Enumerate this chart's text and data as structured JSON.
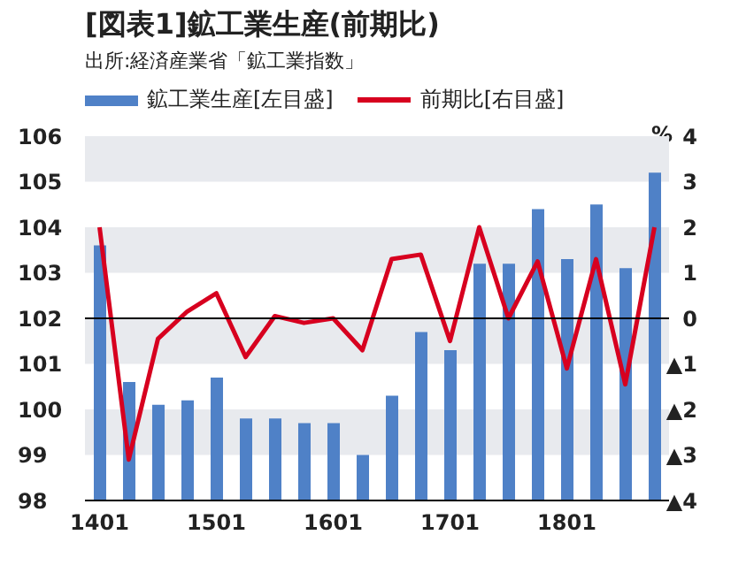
{
  "chart_data": {
    "type": "bar",
    "title": "[図表1]鉱工業生産(前期比)",
    "subtitle": "出所:経済産業省「鉱工業指数」",
    "y2label": "%",
    "categories": [
      "1401",
      null,
      null,
      null,
      "1501",
      null,
      null,
      null,
      "1601",
      null,
      null,
      null,
      "1701",
      null,
      null,
      null,
      "1801",
      null,
      null,
      null
    ],
    "series": [
      {
        "name": "鉱工業生産[左目盛]",
        "color": "#4f81c7",
        "values": [
          103.6,
          100.6,
          100.1,
          100.2,
          100.7,
          99.8,
          99.8,
          99.7,
          99.7,
          99.0,
          100.3,
          101.7,
          101.3,
          103.2,
          103.2,
          104.4,
          103.3,
          104.5,
          103.1,
          105.2
        ]
      },
      {
        "name": "前期比[右目盛]",
        "type": "line",
        "axis": "y2",
        "color": "#d7001f",
        "values": [
          2.0,
          -3.1,
          -0.45,
          0.15,
          0.55,
          -0.85,
          0.05,
          -0.1,
          0.0,
          -0.7,
          1.3,
          1.4,
          -0.5,
          2.0,
          0.0,
          1.25,
          -1.1,
          1.3,
          -1.45,
          2.0
        ]
      }
    ],
    "ylim": [
      98,
      106
    ],
    "yticks": [
      98,
      99,
      100,
      101,
      102,
      103,
      104,
      105,
      106
    ],
    "y2lim": [
      -4,
      4
    ],
    "y2ticks": [
      {
        "value": -4,
        "label": "▲4"
      },
      {
        "value": -3,
        "label": "▲3"
      },
      {
        "value": -2,
        "label": "▲2"
      },
      {
        "value": -1,
        "label": "▲1"
      },
      0,
      1,
      2,
      3,
      4
    ],
    "bands": [
      {
        "axis": "y",
        "from": 105,
        "to": 106,
        "color": "#e8eaee"
      },
      {
        "axis": "y",
        "from": 103,
        "to": 104,
        "color": "#e8eaee"
      },
      {
        "axis": "y",
        "from": 101,
        "to": 102,
        "color": "#e8eaee"
      },
      {
        "axis": "y",
        "from": 99,
        "to": 100,
        "color": "#e8eaee"
      }
    ],
    "ref_lines": [
      {
        "axis": "y",
        "value": 102,
        "color": "#000000"
      }
    ],
    "legend": "top left",
    "marker": "none"
  }
}
